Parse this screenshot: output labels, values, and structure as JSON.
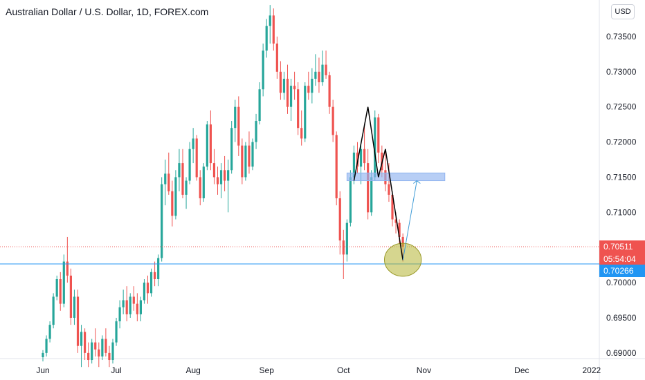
{
  "header": {
    "title": "Australian Dollar / U.S. Dollar, 1D, FOREX.com",
    "currency_badge": "USD"
  },
  "price_tags": {
    "last_price": "0.70511",
    "countdown": "05:54:04",
    "horizontal_line_price": "0.70266"
  },
  "colors": {
    "up": "#26a69a",
    "down": "#ef5350",
    "horizontal_line": "#2196f3",
    "zone": "#90b4f0",
    "ellipse": "#b5b533",
    "projection_arrow": "#3d9ad6",
    "pattern_line": "#000000"
  },
  "chart_data": {
    "type": "candlestick",
    "title": "Australian Dollar / U.S. Dollar, 1D, FOREX.com",
    "y_ticks": [
      "0.73500",
      "0.73000",
      "0.72500",
      "0.72000",
      "0.71500",
      "0.71000",
      "0.70000",
      "0.69500",
      "0.69000"
    ],
    "y_tick_values": [
      0.735,
      0.73,
      0.725,
      0.72,
      0.715,
      0.71,
      0.7,
      0.695,
      0.69
    ],
    "ylim": [
      0.6892,
      0.7402
    ],
    "x_ticks": [
      {
        "label": "Jun",
        "index": 0
      },
      {
        "label": "Jul",
        "index": 21
      },
      {
        "label": "Aug",
        "index": 43
      },
      {
        "label": "Sep",
        "index": 64
      },
      {
        "label": "Oct",
        "index": 86
      },
      {
        "label": "Nov",
        "index": 109
      },
      {
        "label": "Dec",
        "index": 137
      },
      {
        "label": "2022",
        "index": 157
      }
    ],
    "candles": [
      [
        0.6894,
        0.6904,
        0.6888,
        0.69
      ],
      [
        0.69,
        0.6925,
        0.6895,
        0.692
      ],
      [
        0.692,
        0.6945,
        0.6915,
        0.694
      ],
      [
        0.694,
        0.6985,
        0.6935,
        0.698
      ],
      [
        0.698,
        0.701,
        0.6975,
        0.7005
      ],
      [
        0.7005,
        0.7015,
        0.696,
        0.697
      ],
      [
        0.697,
        0.704,
        0.6965,
        0.703
      ],
      [
        0.703,
        0.7065,
        0.7,
        0.701
      ],
      [
        0.701,
        0.702,
        0.694,
        0.695
      ],
      [
        0.695,
        0.699,
        0.694,
        0.698
      ],
      [
        0.698,
        0.699,
        0.69,
        0.691
      ],
      [
        0.691,
        0.694,
        0.688,
        0.693
      ],
      [
        0.693,
        0.6935,
        0.689,
        0.69
      ],
      [
        0.69,
        0.6915,
        0.688,
        0.689
      ],
      [
        0.689,
        0.692,
        0.6885,
        0.6915
      ],
      [
        0.6915,
        0.6935,
        0.6895,
        0.6905
      ],
      [
        0.6905,
        0.6915,
        0.688,
        0.6895
      ],
      [
        0.6895,
        0.6925,
        0.689,
        0.692
      ],
      [
        0.692,
        0.6935,
        0.6895,
        0.69
      ],
      [
        0.69,
        0.691,
        0.688,
        0.689
      ],
      [
        0.689,
        0.692,
        0.6885,
        0.6915
      ],
      [
        0.6915,
        0.695,
        0.691,
        0.6945
      ],
      [
        0.6945,
        0.6975,
        0.6935,
        0.6965
      ],
      [
        0.6965,
        0.699,
        0.6955,
        0.6975
      ],
      [
        0.6975,
        0.6995,
        0.6945,
        0.6955
      ],
      [
        0.6955,
        0.6985,
        0.695,
        0.698
      ],
      [
        0.698,
        0.6995,
        0.696,
        0.697
      ],
      [
        0.697,
        0.6985,
        0.6945,
        0.6955
      ],
      [
        0.6955,
        0.698,
        0.6945,
        0.6975
      ],
      [
        0.6975,
        0.7005,
        0.697,
        0.7
      ],
      [
        0.7,
        0.701,
        0.697,
        0.6985
      ],
      [
        0.6985,
        0.702,
        0.698,
        0.7015
      ],
      [
        0.7015,
        0.703,
        0.6995,
        0.7005
      ],
      [
        0.7005,
        0.704,
        0.6995,
        0.7035
      ],
      [
        0.7035,
        0.715,
        0.703,
        0.714
      ],
      [
        0.714,
        0.7175,
        0.711,
        0.7155
      ],
      [
        0.7155,
        0.7185,
        0.7125,
        0.713
      ],
      [
        0.713,
        0.7145,
        0.708,
        0.7095
      ],
      [
        0.7095,
        0.716,
        0.709,
        0.715
      ],
      [
        0.715,
        0.719,
        0.713,
        0.717
      ],
      [
        0.717,
        0.719,
        0.712,
        0.7125
      ],
      [
        0.7125,
        0.715,
        0.7105,
        0.7145
      ],
      [
        0.7145,
        0.72,
        0.714,
        0.719
      ],
      [
        0.719,
        0.722,
        0.717,
        0.7205
      ],
      [
        0.7205,
        0.721,
        0.7145,
        0.715
      ],
      [
        0.715,
        0.716,
        0.711,
        0.712
      ],
      [
        0.712,
        0.717,
        0.7115,
        0.7165
      ],
      [
        0.7165,
        0.723,
        0.716,
        0.7225
      ],
      [
        0.7225,
        0.7245,
        0.716,
        0.717
      ],
      [
        0.717,
        0.719,
        0.714,
        0.715
      ],
      [
        0.715,
        0.7165,
        0.7125,
        0.714
      ],
      [
        0.714,
        0.717,
        0.712,
        0.716
      ],
      [
        0.716,
        0.718,
        0.713,
        0.7145
      ],
      [
        0.7145,
        0.7175,
        0.71,
        0.716
      ],
      [
        0.716,
        0.723,
        0.7155,
        0.722
      ],
      [
        0.722,
        0.726,
        0.72,
        0.725
      ],
      [
        0.725,
        0.7265,
        0.718,
        0.7195
      ],
      [
        0.7195,
        0.7205,
        0.714,
        0.715
      ],
      [
        0.715,
        0.72,
        0.7145,
        0.7195
      ],
      [
        0.7195,
        0.7215,
        0.7155,
        0.7165
      ],
      [
        0.7165,
        0.7205,
        0.716,
        0.72
      ],
      [
        0.72,
        0.724,
        0.719,
        0.723
      ],
      [
        0.723,
        0.7285,
        0.7225,
        0.7275
      ],
      [
        0.7275,
        0.734,
        0.7265,
        0.733
      ],
      [
        0.733,
        0.7375,
        0.732,
        0.7365
      ],
      [
        0.7365,
        0.7395,
        0.734,
        0.738
      ],
      [
        0.738,
        0.739,
        0.733,
        0.734
      ],
      [
        0.734,
        0.735,
        0.729,
        0.73
      ],
      [
        0.73,
        0.7315,
        0.726,
        0.727
      ],
      [
        0.727,
        0.73,
        0.726,
        0.729
      ],
      [
        0.729,
        0.731,
        0.724,
        0.725
      ],
      [
        0.725,
        0.729,
        0.723,
        0.728
      ],
      [
        0.728,
        0.73,
        0.726,
        0.7275
      ],
      [
        0.7275,
        0.7285,
        0.721,
        0.722
      ],
      [
        0.722,
        0.7245,
        0.7195,
        0.7205
      ],
      [
        0.7205,
        0.7285,
        0.72,
        0.728
      ],
      [
        0.728,
        0.73,
        0.726,
        0.727
      ],
      [
        0.727,
        0.7305,
        0.7255,
        0.729
      ],
      [
        0.729,
        0.7325,
        0.728,
        0.73
      ],
      [
        0.73,
        0.732,
        0.727,
        0.7285
      ],
      [
        0.7285,
        0.733,
        0.728,
        0.731
      ],
      [
        0.731,
        0.733,
        0.729,
        0.7295
      ],
      [
        0.7295,
        0.73,
        0.724,
        0.725
      ],
      [
        0.725,
        0.726,
        0.72,
        0.721
      ],
      [
        0.721,
        0.7215,
        0.711,
        0.712
      ],
      [
        0.712,
        0.713,
        0.704,
        0.706
      ],
      [
        0.706,
        0.7075,
        0.7005,
        0.704
      ],
      [
        0.704,
        0.709,
        0.703,
        0.7085
      ],
      [
        0.7085,
        0.716,
        0.708,
        0.715
      ],
      [
        0.715,
        0.7195,
        0.714,
        0.7185
      ],
      [
        0.7185,
        0.72,
        0.7155,
        0.7165
      ],
      [
        0.7165,
        0.72,
        0.714,
        0.719
      ],
      [
        0.719,
        0.7225,
        0.716,
        0.717
      ],
      [
        0.717,
        0.719,
        0.709,
        0.71
      ],
      [
        0.71,
        0.716,
        0.7095,
        0.715
      ],
      [
        0.715,
        0.7245,
        0.7145,
        0.7235
      ],
      [
        0.7235,
        0.724,
        0.717,
        0.7185
      ],
      [
        0.7185,
        0.7195,
        0.715,
        0.716
      ],
      [
        0.716,
        0.719,
        0.713,
        0.714
      ],
      [
        0.714,
        0.717,
        0.7115,
        0.7125
      ],
      [
        0.7125,
        0.713,
        0.708,
        0.709
      ],
      [
        0.709,
        0.71,
        0.707,
        0.7085
      ],
      [
        0.7085,
        0.709,
        0.7055,
        0.7065
      ],
      [
        0.7065,
        0.707,
        0.703,
        0.7051
      ]
    ],
    "annotations": {
      "horizontal_line_value": 0.70266,
      "last_price_value": 0.70511,
      "zone": {
        "from_index": 87,
        "to_index": 115,
        "low": 0.7145,
        "high": 0.7156
      },
      "pattern_line": [
        [
          89,
          0.7145
        ],
        [
          93,
          0.725
        ],
        [
          96,
          0.715
        ],
        [
          98,
          0.719
        ],
        [
          103,
          0.7032
        ]
      ],
      "projection_arrow": [
        [
          103,
          0.7032
        ],
        [
          107,
          0.7145
        ]
      ],
      "ellipse": {
        "center_index": 103,
        "center_value": 0.70325,
        "half_width_bars": 2.2,
        "half_height_value": 0.00235
      }
    }
  }
}
